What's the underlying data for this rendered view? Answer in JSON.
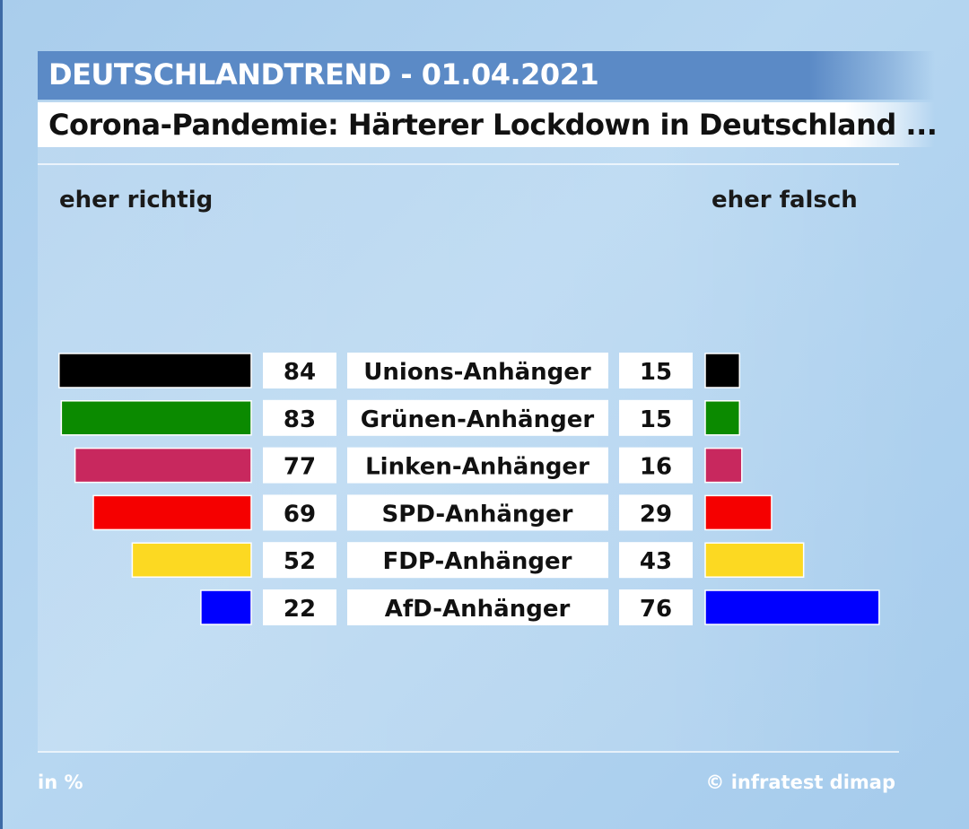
{
  "header": {
    "title": "DEUTSCHLANDTREND - 01.04.2021"
  },
  "subtitle": "Corona-Pandemie: Härterer Lockdown in Deutschland ...",
  "labels": {
    "left": "eher richtig",
    "right": "eher falsch"
  },
  "footer": {
    "unit": "in %",
    "source": "© infratest dimap"
  },
  "chart_data": {
    "type": "bar",
    "categories": [
      "Unions-Anhänger",
      "Grünen-Anhänger",
      "Linken-Anhänger",
      "SPD-Anhänger",
      "FDP-Anhänger",
      "AfD-Anhänger"
    ],
    "series": [
      {
        "name": "eher richtig",
        "values": [
          84,
          83,
          77,
          69,
          52,
          22
        ]
      },
      {
        "name": "eher falsch",
        "values": [
          15,
          15,
          16,
          29,
          43,
          76
        ]
      }
    ],
    "colors": [
      "#000000",
      "#0b8a00",
      "#c8285e",
      "#f50000",
      "#fcd922",
      "#0000ff"
    ],
    "unit": "in %"
  }
}
